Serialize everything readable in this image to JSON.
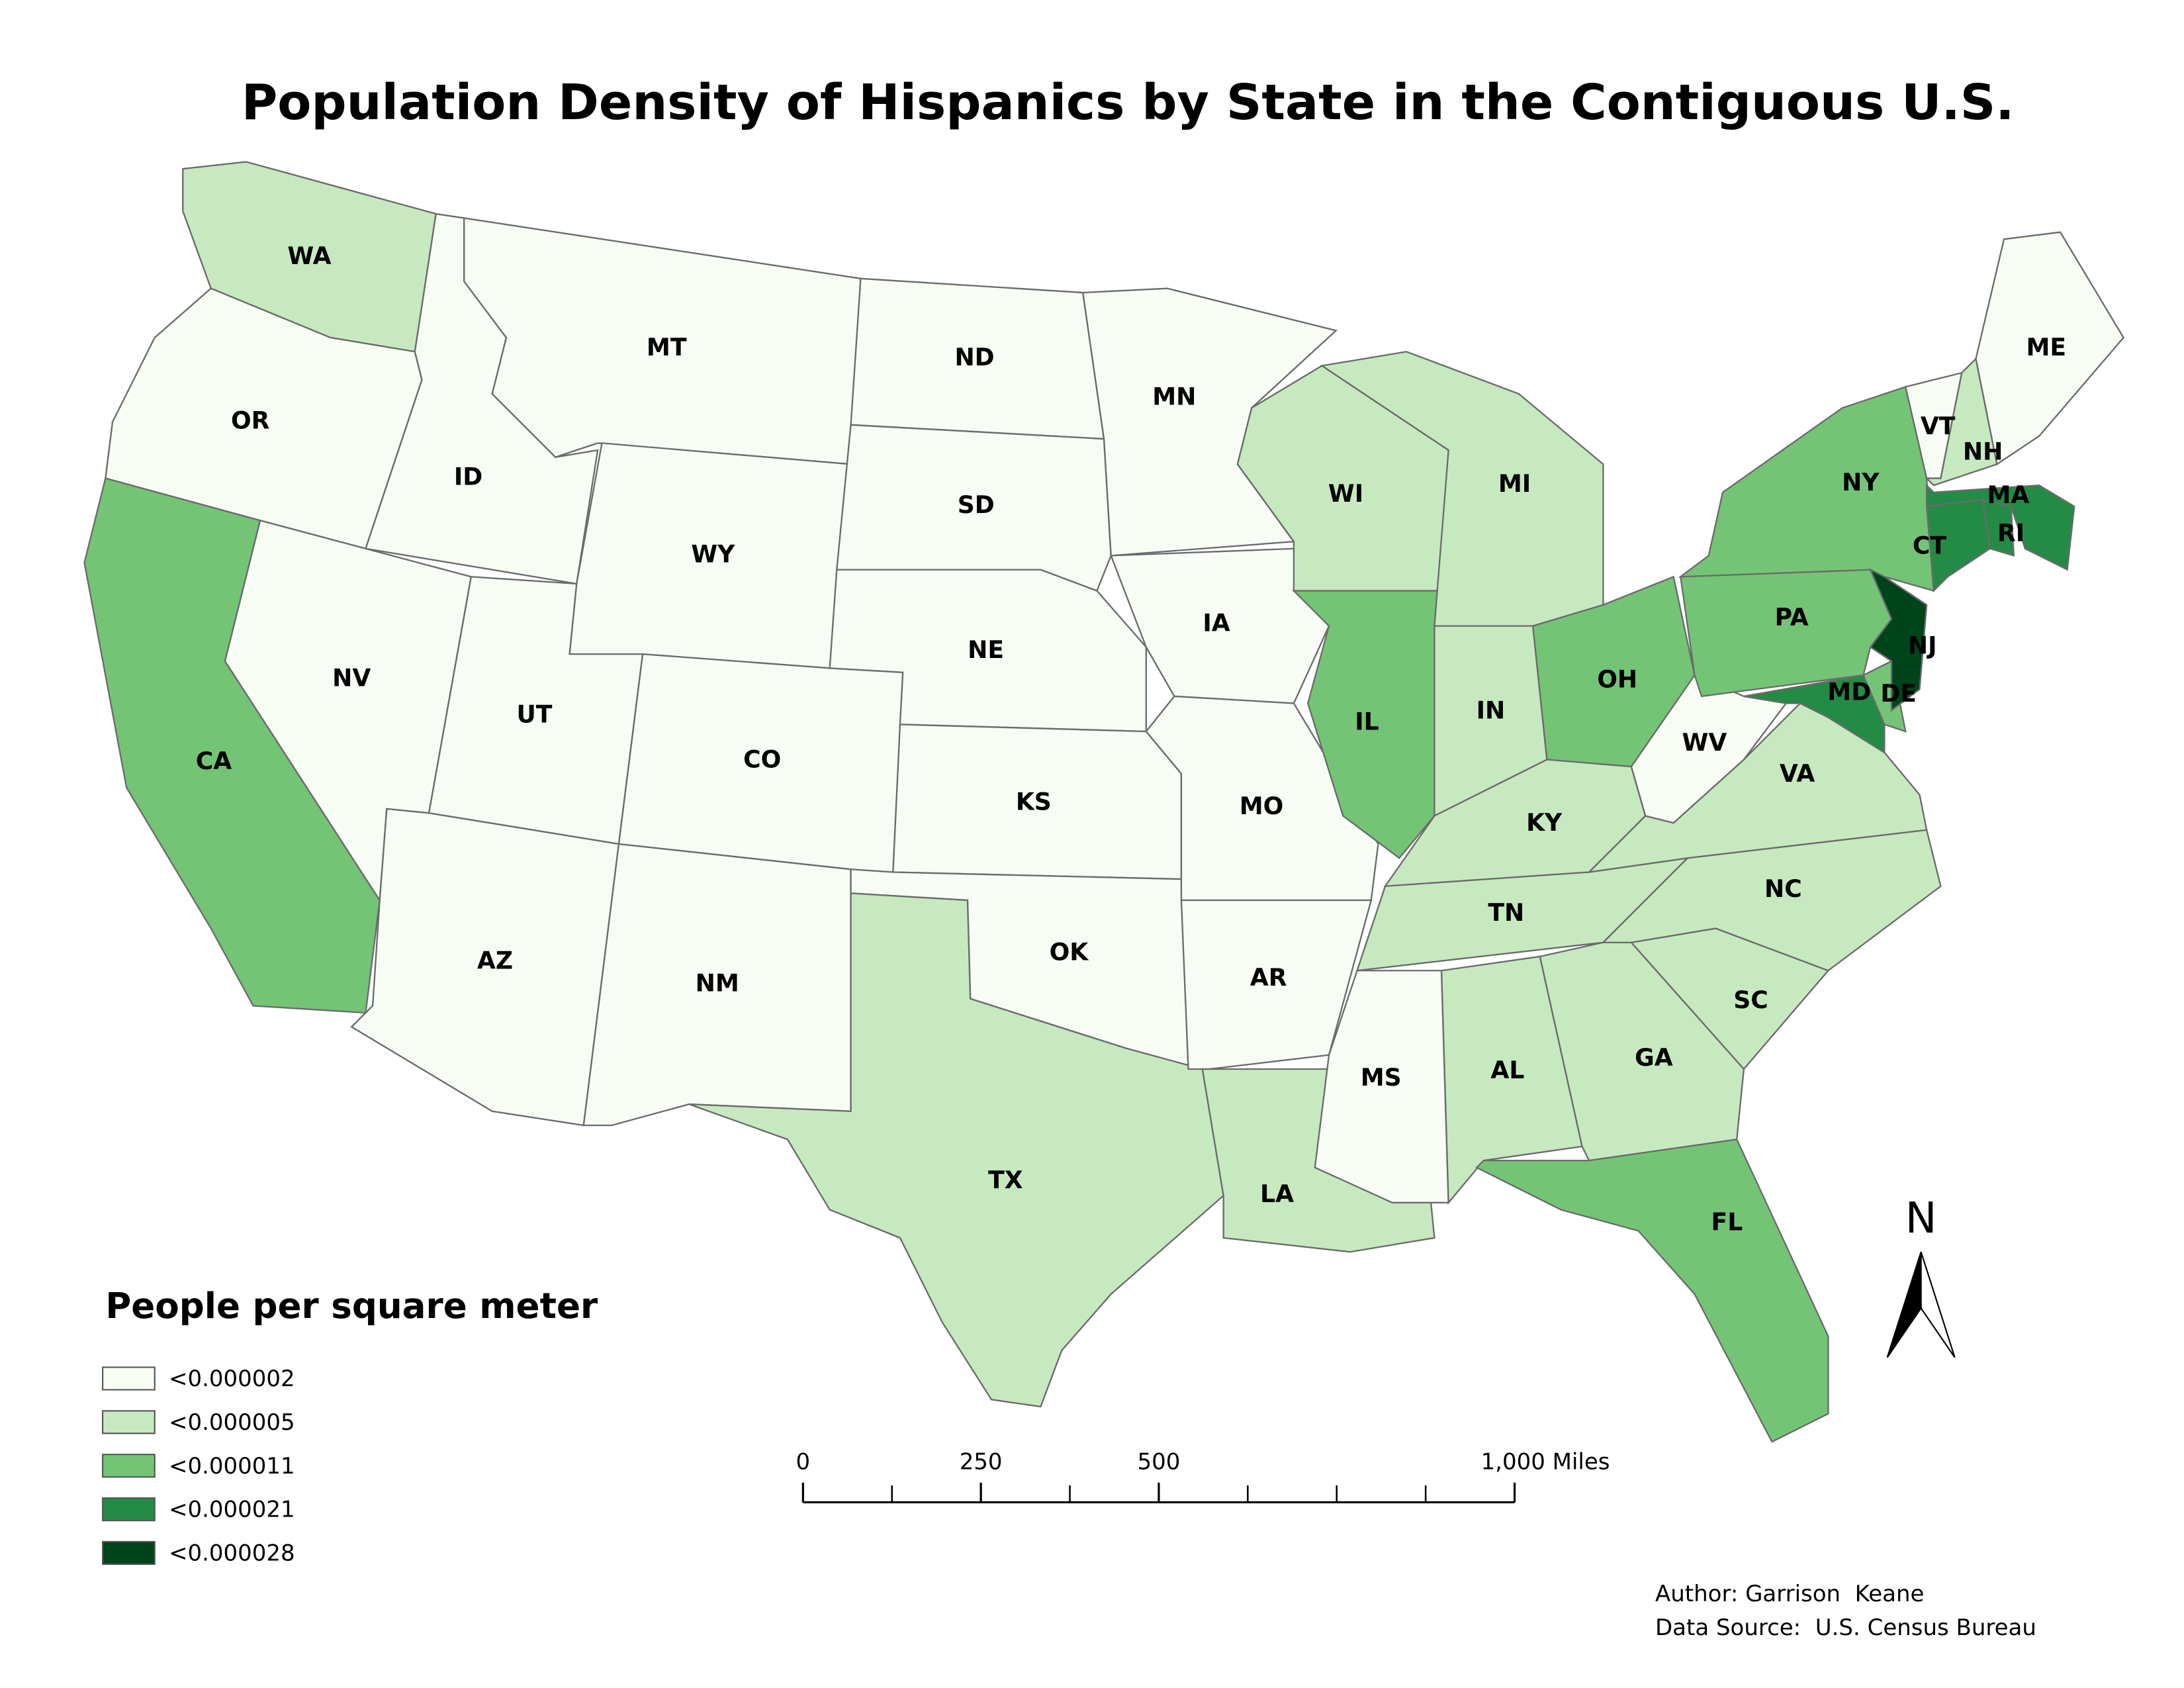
{
  "title": "Population Density of Hispanics by State in the Contiguous U.S.",
  "legend": {
    "title": "People per square meter",
    "classes": [
      {
        "label": "<0.000002",
        "color": "#f7fcf5"
      },
      {
        "label": "<0.000005",
        "color": "#c7e9c0"
      },
      {
        "label": "<0.000011",
        "color": "#74c476"
      },
      {
        "label": "<0.000021",
        "color": "#238b45"
      },
      {
        "label": "<0.000028",
        "color": "#00441b"
      }
    ]
  },
  "states": [
    {
      "label": "WA",
      "class": 1
    },
    {
      "label": "OR",
      "class": 0
    },
    {
      "label": "CA",
      "class": 2
    },
    {
      "label": "ID",
      "class": 0
    },
    {
      "label": "NV",
      "class": 0
    },
    {
      "label": "MT",
      "class": 0
    },
    {
      "label": "WY",
      "class": 0
    },
    {
      "label": "UT",
      "class": 0
    },
    {
      "label": "AZ",
      "class": 0
    },
    {
      "label": "CO",
      "class": 0
    },
    {
      "label": "NM",
      "class": 0
    },
    {
      "label": "ND",
      "class": 0
    },
    {
      "label": "SD",
      "class": 0
    },
    {
      "label": "NE",
      "class": 0
    },
    {
      "label": "KS",
      "class": 0
    },
    {
      "label": "OK",
      "class": 0
    },
    {
      "label": "TX",
      "class": 1
    },
    {
      "label": "MN",
      "class": 0
    },
    {
      "label": "IA",
      "class": 0
    },
    {
      "label": "MO",
      "class": 0
    },
    {
      "label": "AR",
      "class": 0
    },
    {
      "label": "LA",
      "class": 1
    },
    {
      "label": "WI",
      "class": 1
    },
    {
      "label": "IL",
      "class": 2
    },
    {
      "label": "MI",
      "class": 1
    },
    {
      "label": "IN",
      "class": 1
    },
    {
      "label": "OH",
      "class": 2
    },
    {
      "label": "KY",
      "class": 1
    },
    {
      "label": "TN",
      "class": 1
    },
    {
      "label": "MS",
      "class": 0
    },
    {
      "label": "AL",
      "class": 1
    },
    {
      "label": "GA",
      "class": 1
    },
    {
      "label": "FL",
      "class": 2
    },
    {
      "label": "SC",
      "class": 1
    },
    {
      "label": "NC",
      "class": 1
    },
    {
      "label": "VA",
      "class": 1
    },
    {
      "label": "WV",
      "class": 0
    },
    {
      "label": "PA",
      "class": 2
    },
    {
      "label": "NY",
      "class": 2
    },
    {
      "label": "MD",
      "class": 3
    },
    {
      "label": "DE",
      "class": 2
    },
    {
      "label": "NJ",
      "class": 4
    },
    {
      "label": "CT",
      "class": 3
    },
    {
      "label": "RI",
      "class": 3
    },
    {
      "label": "MA",
      "class": 3
    },
    {
      "label": "VT",
      "class": 0
    },
    {
      "label": "NH",
      "class": 1
    },
    {
      "label": "ME",
      "class": 0
    }
  ],
  "scale_bar": {
    "ticks": [
      0,
      250,
      500,
      {
        "value": 1000,
        "label": "1,000 Miles"
      }
    ]
  },
  "north": "N",
  "author": "Author: Garrison  Keane",
  "source": "Data Source:  U.S. Census Bureau"
}
